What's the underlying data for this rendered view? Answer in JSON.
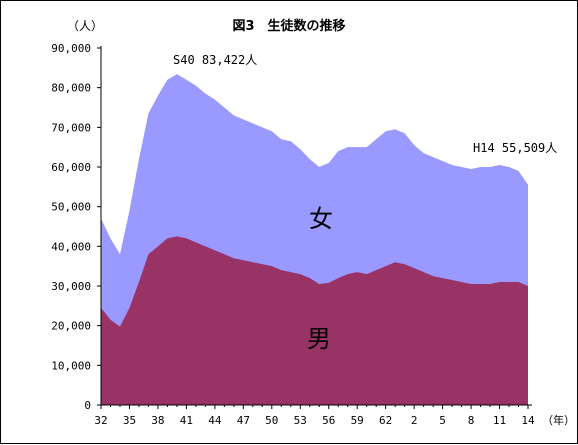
{
  "chart_data": {
    "type": "area",
    "title": "図3　生徒数の推移",
    "y_unit_label": "（人）",
    "x_unit_label": "（年）",
    "y_ticks": [
      "0",
      "10,000",
      "20,000",
      "30,000",
      "40,000",
      "50,000",
      "60,000",
      "70,000",
      "80,000",
      "90,000"
    ],
    "ylim": [
      0,
      90000
    ],
    "x_tick_labels": [
      "32",
      "35",
      "38",
      "41",
      "44",
      "47",
      "50",
      "53",
      "56",
      "59",
      "62",
      "2",
      "5",
      "8",
      "11",
      "14"
    ],
    "x": [
      "S32",
      "S33",
      "S34",
      "S35",
      "S36",
      "S37",
      "S38",
      "S39",
      "S40",
      "S41",
      "S42",
      "S43",
      "S44",
      "S45",
      "S46",
      "S47",
      "S48",
      "S49",
      "S50",
      "S51",
      "S52",
      "S53",
      "S54",
      "S55",
      "S56",
      "S57",
      "S58",
      "S59",
      "S60",
      "S61",
      "S62",
      "S63",
      "H1",
      "H2",
      "H3",
      "H4",
      "H5",
      "H6",
      "H7",
      "H8",
      "H9",
      "H10",
      "H11",
      "H12",
      "H13",
      "H14"
    ],
    "stacked": true,
    "series": [
      {
        "name": "男",
        "color": "#993366",
        "values": [
          24500,
          21500,
          19800,
          24500,
          31000,
          38000,
          40000,
          42000,
          42500,
          42000,
          41000,
          40000,
          39000,
          38000,
          37000,
          36500,
          36000,
          35500,
          35000,
          34000,
          33500,
          33000,
          32000,
          30500,
          30800,
          32000,
          33000,
          33500,
          33000,
          34000,
          35000,
          36000,
          35500,
          34500,
          33500,
          32500,
          32000,
          31500,
          31000,
          30500,
          30500,
          30500,
          31000,
          31000,
          31000,
          30000
        ]
      },
      {
        "name": "女",
        "color": "#9999ff",
        "values": [
          22500,
          20500,
          18200,
          24500,
          31000,
          35500,
          38000,
          40000,
          40922,
          40000,
          39500,
          38500,
          38000,
          37000,
          36000,
          35500,
          35000,
          34500,
          34000,
          33000,
          33000,
          31500,
          30000,
          29500,
          30200,
          32000,
          32000,
          31500,
          32000,
          33000,
          34000,
          33500,
          33000,
          31000,
          30000,
          30000,
          29500,
          29000,
          29000,
          29000,
          29500,
          29500,
          29500,
          29000,
          28000,
          25509
        ]
      }
    ],
    "annotations": [
      {
        "text": "S40 83,422人"
      },
      {
        "text": "H14 55,509人"
      }
    ],
    "in_chart_labels": {
      "female": "女",
      "male": "男"
    },
    "grid": false,
    "legend": "none"
  }
}
